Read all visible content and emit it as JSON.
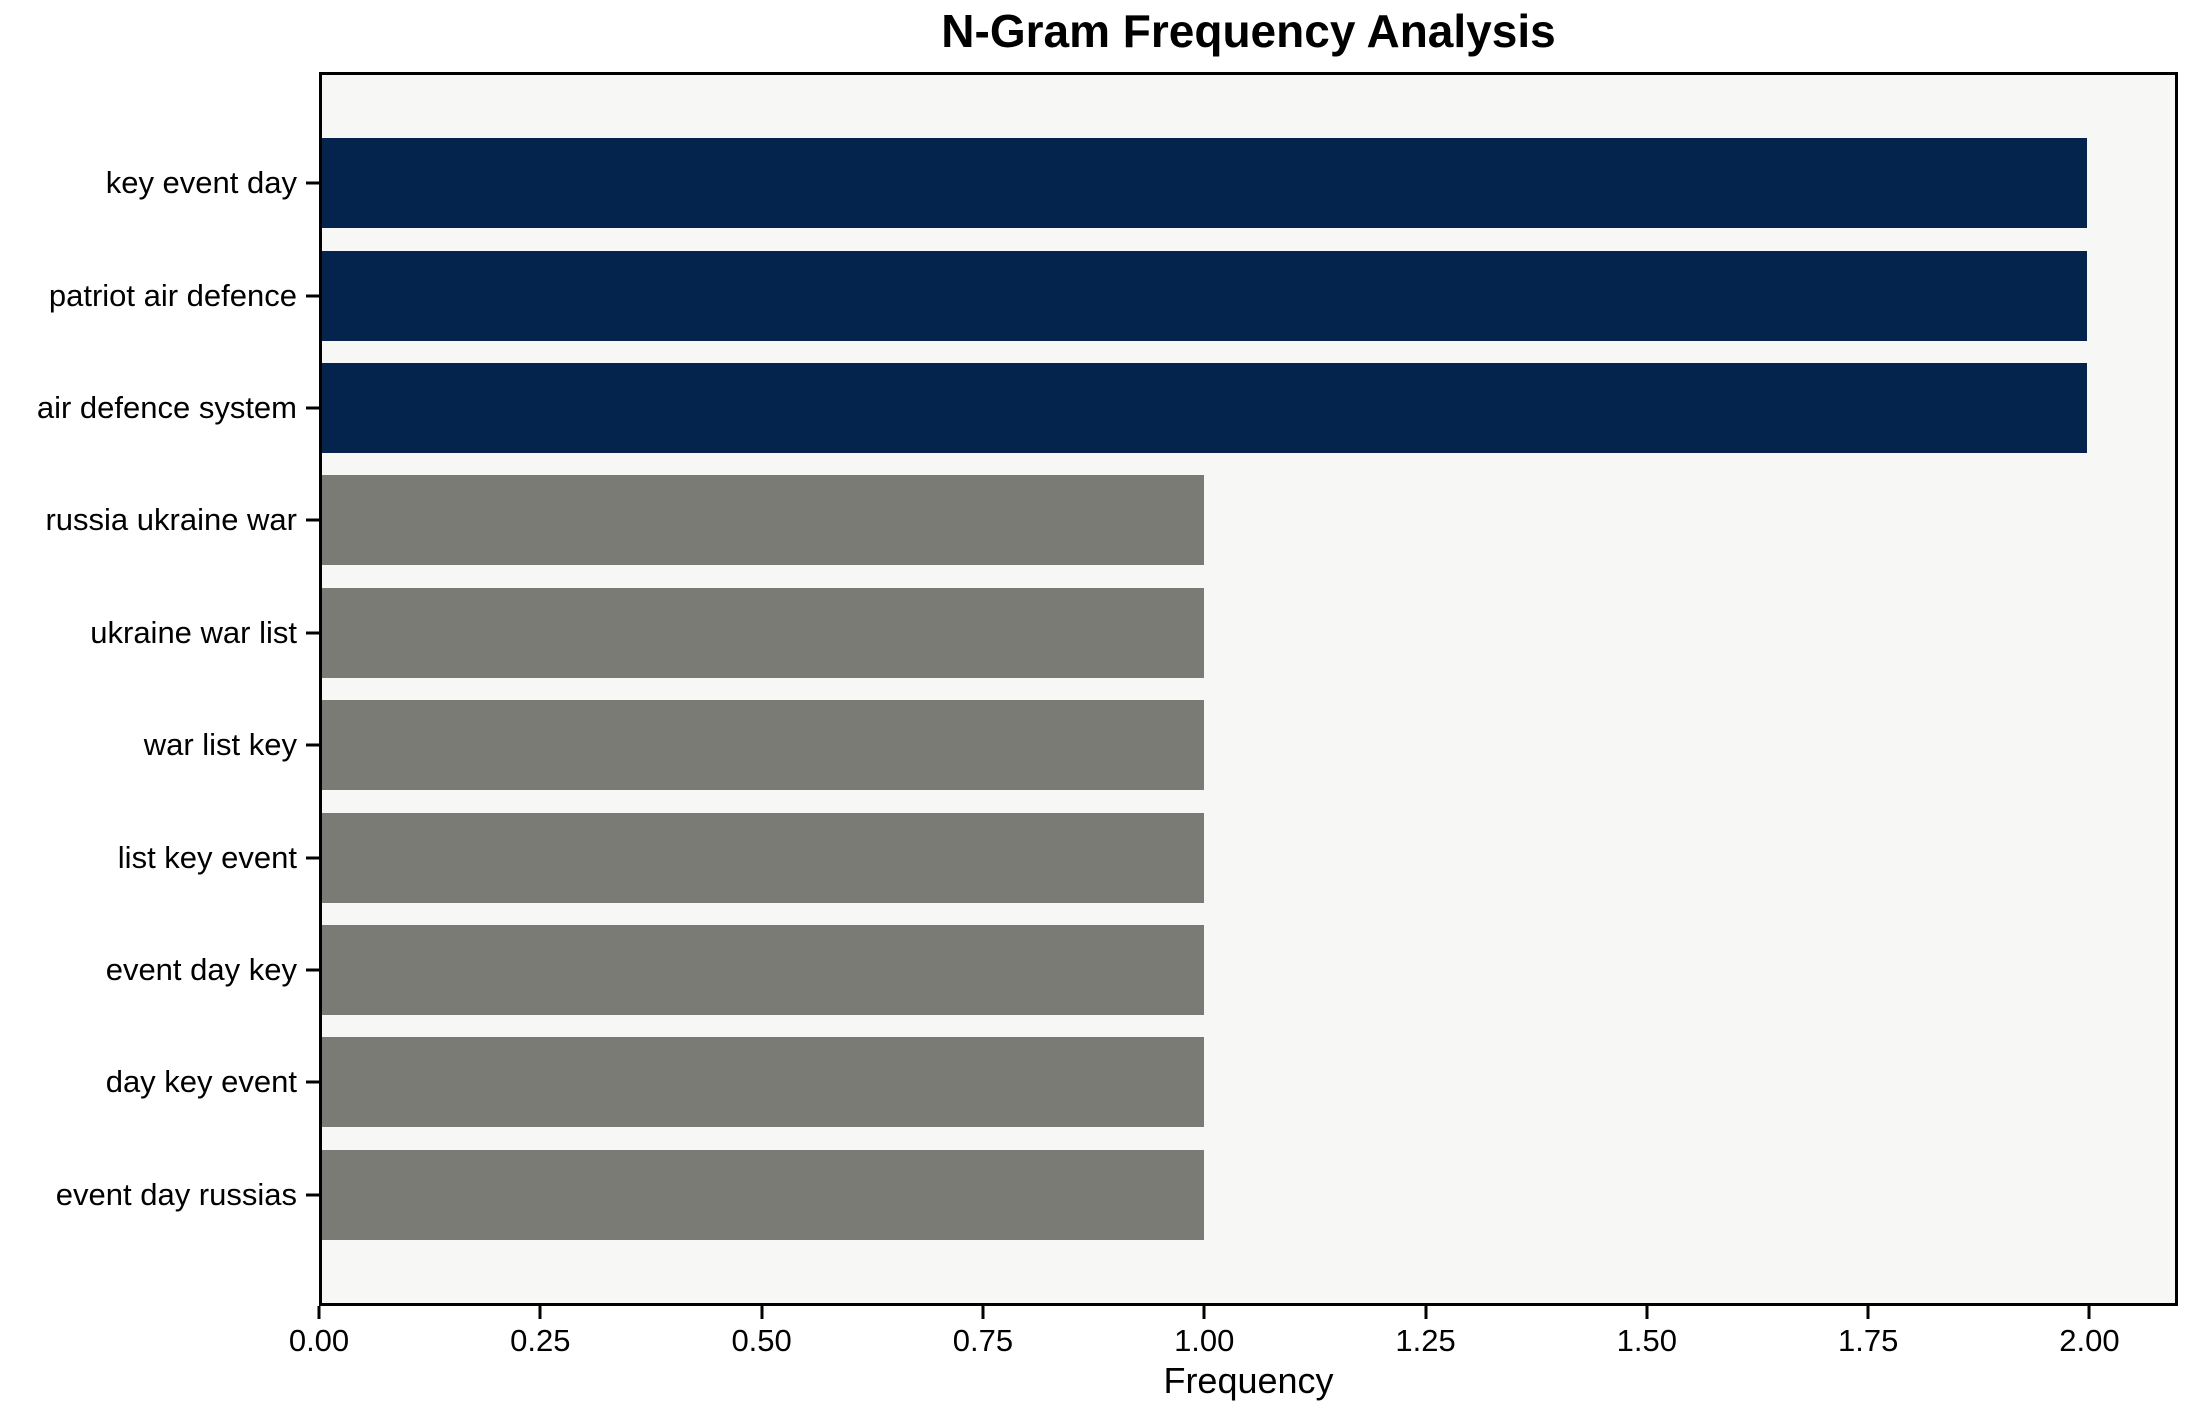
{
  "chart_data": {
    "type": "bar",
    "orientation": "horizontal",
    "title": "N-Gram Frequency Analysis",
    "xlabel": "Frequency",
    "ylabel": "",
    "categories": [
      "key event day",
      "patriot air defence",
      "air defence system",
      "russia ukraine war",
      "ukraine war list",
      "war list key",
      "list key event",
      "event day key",
      "day key event",
      "event day russias"
    ],
    "values": [
      2,
      2,
      2,
      1,
      1,
      1,
      1,
      1,
      1,
      1
    ],
    "xlim": [
      0,
      2.1
    ],
    "xticks": [
      0,
      0.25,
      0.5,
      0.75,
      1.0,
      1.25,
      1.5,
      1.75,
      2.0
    ],
    "xtick_labels": [
      "0.00",
      "0.25",
      "0.50",
      "0.75",
      "1.00",
      "1.25",
      "1.50",
      "1.75",
      "2.00"
    ],
    "grid": false,
    "legend": null,
    "bar_height_fraction": 0.8,
    "highlight_threshold": 2,
    "colors": {
      "highlight_bar": "#04234d",
      "regular_bar": "#7b7b76",
      "plot_background": "#f7f7f5",
      "figure_background": "#ffffff",
      "spine": "#000000",
      "text": "#000000"
    }
  }
}
